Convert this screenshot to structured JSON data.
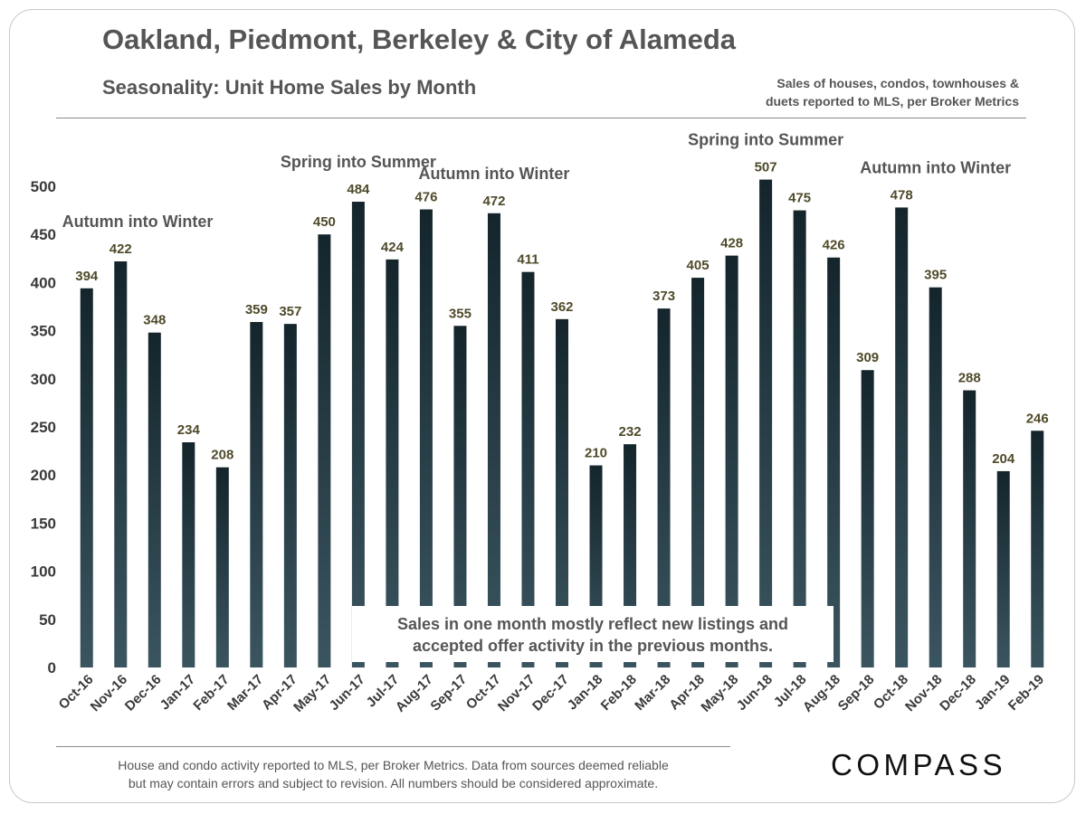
{
  "header": {
    "title": "Oakland, Piedmont, Berkeley & City of Alameda",
    "subtitle": "Seasonality: Unit Home Sales by Month",
    "source_note_line1": "Sales of houses, condos, townhouses &",
    "source_note_line2": "duets reported to MLS, per Broker Metrics"
  },
  "callout": {
    "line1": "Sales in one month mostly reflect new listings and",
    "line2": "accepted offer activity in the previous months."
  },
  "footer": {
    "line1": "House and condo activity reported to MLS, per Broker Metrics. Data from sources deemed reliable",
    "line2": "but may contain errors and subject to revision.  All numbers should be considered approximate.",
    "logo_text": "COMPASS"
  },
  "chart_data": {
    "type": "bar",
    "categories": [
      "Oct-16",
      "Nov-16",
      "Dec-16",
      "Jan-17",
      "Feb-17",
      "Mar-17",
      "Apr-17",
      "May-17",
      "Jun-17",
      "Jul-17",
      "Aug-17",
      "Sep-17",
      "Oct-17",
      "Nov-17",
      "Dec-17",
      "Jan-18",
      "Feb-18",
      "Mar-18",
      "Apr-18",
      "May-18",
      "Jun-18",
      "Jul-18",
      "Aug-18",
      "Sep-18",
      "Oct-18",
      "Nov-18",
      "Dec-18",
      "Jan-19",
      "Feb-19"
    ],
    "values": [
      394,
      422,
      348,
      234,
      208,
      359,
      357,
      450,
      484,
      424,
      476,
      355,
      472,
      411,
      362,
      210,
      232,
      373,
      405,
      428,
      507,
      475,
      426,
      309,
      478,
      395,
      288,
      204,
      246
    ],
    "ylim": [
      0,
      500
    ],
    "yticks": [
      0,
      50,
      100,
      150,
      200,
      250,
      300,
      350,
      400,
      450,
      500
    ],
    "grid": false,
    "data_labels": true,
    "annotations": [
      {
        "text": "Autumn into Winter",
        "category": "Nov-16"
      },
      {
        "text": "Spring into Summer",
        "category": "Jun-17"
      },
      {
        "text": "Autumn into Winter",
        "category": "Oct-17"
      },
      {
        "text": "Spring into Summer",
        "category": "Jun-18"
      },
      {
        "text": "Autumn into Winter",
        "category": "Nov-18"
      }
    ],
    "colors": {
      "bar_dark": "#14252c",
      "bar_light": "#3b5560",
      "label": "#4f4a2a"
    }
  }
}
